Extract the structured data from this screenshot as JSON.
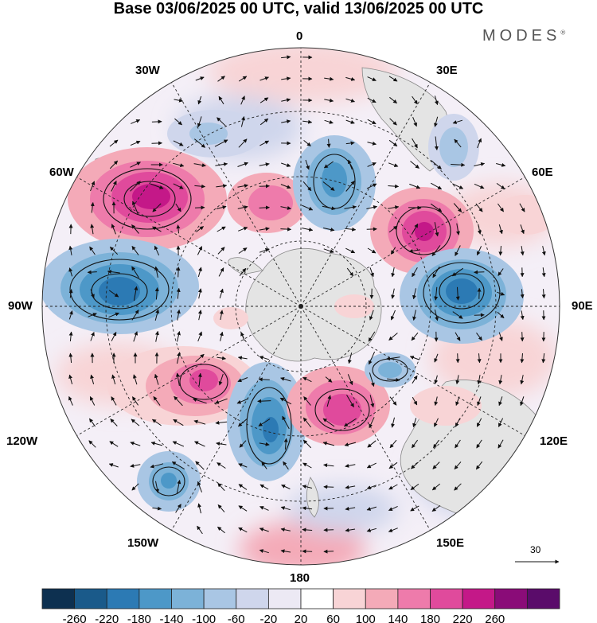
{
  "title": "Base 03/06/2025 00 UTC, valid 13/06/2025 00 UTC",
  "brand": "MODES",
  "brand_mark": "®",
  "longitude_labels": {
    "top": "0",
    "e30": "30E",
    "w30": "30W",
    "w60": "60W",
    "e60": "60E",
    "w90": "90W",
    "e90": "90E",
    "w120": "120W",
    "e120": "120E",
    "w150": "150W",
    "e150": "150E",
    "bottom": "180"
  },
  "reference_vector": {
    "label": "30"
  },
  "colorbar": {
    "ticks": [
      "-260",
      "-220",
      "-180",
      "-140",
      "-100",
      "-60",
      "-20",
      "20",
      "60",
      "100",
      "140",
      "180",
      "220",
      "260"
    ],
    "colors": [
      "#0d3050",
      "#1a5a8a",
      "#2c7ab4",
      "#4d98c8",
      "#7cb2d8",
      "#a9c6e4",
      "#cfd6ec",
      "#ece9f4",
      "#ffffff",
      "#f8d4d6",
      "#f4aab8",
      "#ee7bab",
      "#e04a9c",
      "#c41888",
      "#8a0c78",
      "#5a0c6a"
    ]
  },
  "features": {
    "positive_anomalies": [
      {
        "name": "pos-anomaly-south-atlantic",
        "level": 220
      },
      {
        "name": "pos-anomaly-indian-ocean",
        "level": 220
      },
      {
        "name": "pos-anomaly-south-pacific",
        "level": 180
      },
      {
        "name": "pos-anomaly-southern-ocean-150e",
        "level": 180
      },
      {
        "name": "pos-anomaly-drake",
        "level": 100
      }
    ],
    "negative_anomalies": [
      {
        "name": "neg-anomaly-east-pacific",
        "level": -220
      },
      {
        "name": "neg-anomaly-indian-90e",
        "level": -220
      },
      {
        "name": "neg-anomaly-ross-sea",
        "level": -220
      },
      {
        "name": "neg-anomaly-south-atlantic-15e",
        "level": -180
      },
      {
        "name": "neg-anomaly-pacific-140w",
        "level": -140
      }
    ]
  }
}
